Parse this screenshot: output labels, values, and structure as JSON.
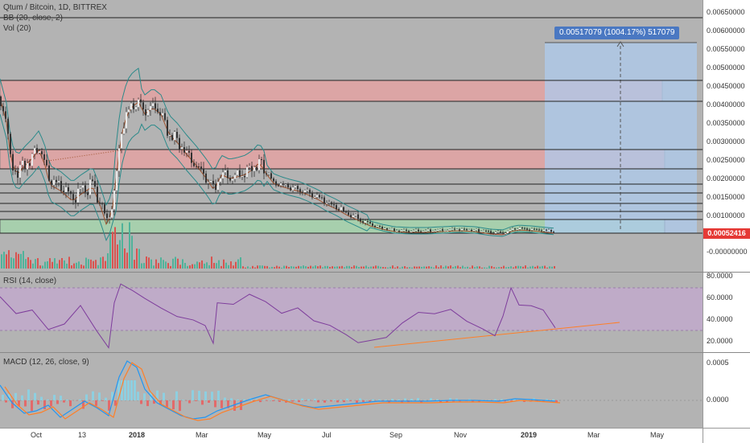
{
  "main": {
    "title": "Qtum / Bitcoin, 1D, BITTREX",
    "bb_label": "BB (20, close, 2)",
    "vol_label": "Vol (20)",
    "price_ticks": [
      "0.00650000",
      "0.00600000",
      "0.00550000",
      "0.00500000",
      "0.00450000",
      "0.00400000",
      "0.00350000",
      "0.00300000",
      "0.00250000",
      "0.00200000",
      "0.00150000",
      "0.00100000",
      "0.00050000",
      "-0.00000000"
    ],
    "current_price": "0.00052416",
    "measure_label": "0.00517079 (1004.17%) 517079"
  },
  "rsi": {
    "label": "RSI (14, close)",
    "ticks": [
      "80.0000",
      "60.0000",
      "40.0000",
      "20.0000"
    ]
  },
  "macd": {
    "label": "MACD (12, 26, close, 9)",
    "ticks": [
      "0.0005",
      "0.0000"
    ]
  },
  "time_axis": {
    "labels": [
      {
        "text": "Oct",
        "bold": false
      },
      {
        "text": "13",
        "bold": false
      },
      {
        "text": "2018",
        "bold": true
      },
      {
        "text": "Mar",
        "bold": false
      },
      {
        "text": "May",
        "bold": false
      },
      {
        "text": "Jul",
        "bold": false
      },
      {
        "text": "Sep",
        "bold": false
      },
      {
        "text": "Nov",
        "bold": false
      },
      {
        "text": "2019",
        "bold": true
      },
      {
        "text": "Mar",
        "bold": false
      },
      {
        "text": "May",
        "bold": false
      }
    ]
  },
  "colors": {
    "pane_bg": "#b3b3b3",
    "candle_up": "#26a69a",
    "candle_down": "#ef5350",
    "bb_line": "#2a8a8a",
    "rsi_line": "#7e3d9c",
    "macd_line": "#2196f3",
    "signal_line": "#ff7f27",
    "resistance_zone": "#e89a9a",
    "support_zone": "#9fd3a6",
    "measure_box": "#a9c6e8",
    "price_tag": "#e53935"
  }
}
